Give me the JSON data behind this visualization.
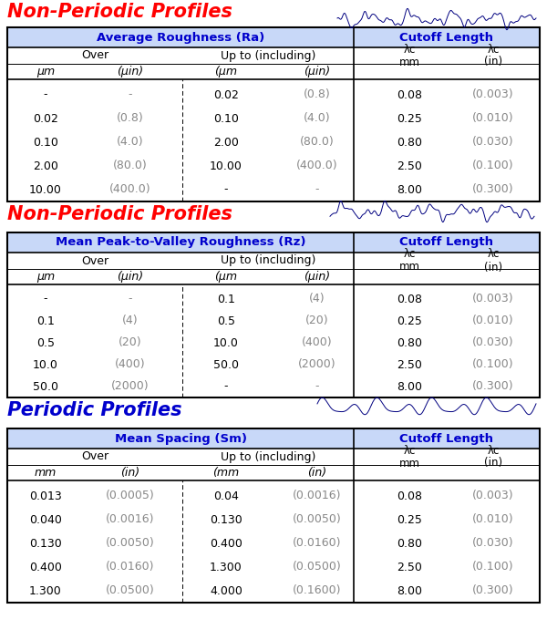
{
  "section1_title": "Non-Periodic Profiles",
  "section1_color": "#FF0000",
  "table1_header": "Average Roughness (Ra)",
  "table2_header": "Mean Peak-to-Valley Roughness (Rz)",
  "section2_title": "Non-Periodic Profiles",
  "section2_color": "#FF0000",
  "section3_title": "Periodic Profiles",
  "section3_color": "#0000CC",
  "table3_header": "Mean Spacing (Sm)",
  "cutoff_header": "Cutoff Length",
  "header_text_color": "#0000CC",
  "header_bg": "#C8D8F8",
  "bg_color": "#FFFFFF",
  "table_border": "#000000",
  "lambda_c": "λc",
  "table1_data": [
    [
      "-",
      "-",
      "0.02",
      "(0.8)",
      "0.08",
      "(0.003)"
    ],
    [
      "0.02",
      "(0.8)",
      "0.10",
      "(4.0)",
      "0.25",
      "(0.010)"
    ],
    [
      "0.10",
      "(4.0)",
      "2.00",
      "(80.0)",
      "0.80",
      "(0.030)"
    ],
    [
      "2.00",
      "(80.0)",
      "10.00",
      "(400.0)",
      "2.50",
      "(0.100)"
    ],
    [
      "10.00",
      "(400.0)",
      "-",
      "-",
      "8.00",
      "(0.300)"
    ]
  ],
  "table2_data": [
    [
      "-",
      "-",
      "0.1",
      "(4)",
      "0.08",
      "(0.003)"
    ],
    [
      "0.1",
      "(4)",
      "0.5",
      "(20)",
      "0.25",
      "(0.010)"
    ],
    [
      "0.5",
      "(20)",
      "10.0",
      "(400)",
      "0.80",
      "(0.030)"
    ],
    [
      "10.0",
      "(400)",
      "50.0",
      "(2000)",
      "2.50",
      "(0.100)"
    ],
    [
      "50.0",
      "(2000)",
      "-",
      "-",
      "8.00",
      "(0.300)"
    ]
  ],
  "table3_data": [
    [
      "0.013",
      "(0.0005)",
      "0.04",
      "(0.0016)",
      "0.08",
      "(0.003)"
    ],
    [
      "0.040",
      "(0.0016)",
      "0.130",
      "(0.0050)",
      "0.25",
      "(0.010)"
    ],
    [
      "0.130",
      "(0.0050)",
      "0.400",
      "(0.0160)",
      "0.80",
      "(0.030)"
    ],
    [
      "0.400",
      "(0.0160)",
      "1.300",
      "(0.0500)",
      "2.50",
      "(0.100)"
    ],
    [
      "1.300",
      "(0.0500)",
      "4.000",
      "(0.1600)",
      "8.00",
      "(0.300)"
    ]
  ],
  "t1_units": [
    "μm",
    "(μin)",
    "(μm",
    "(μin)"
  ],
  "t2_units": [
    "μm",
    "(μin)",
    "(μm",
    "(μin)"
  ],
  "t3_units": [
    "mm",
    "(in)",
    "(mm",
    "(in)"
  ]
}
